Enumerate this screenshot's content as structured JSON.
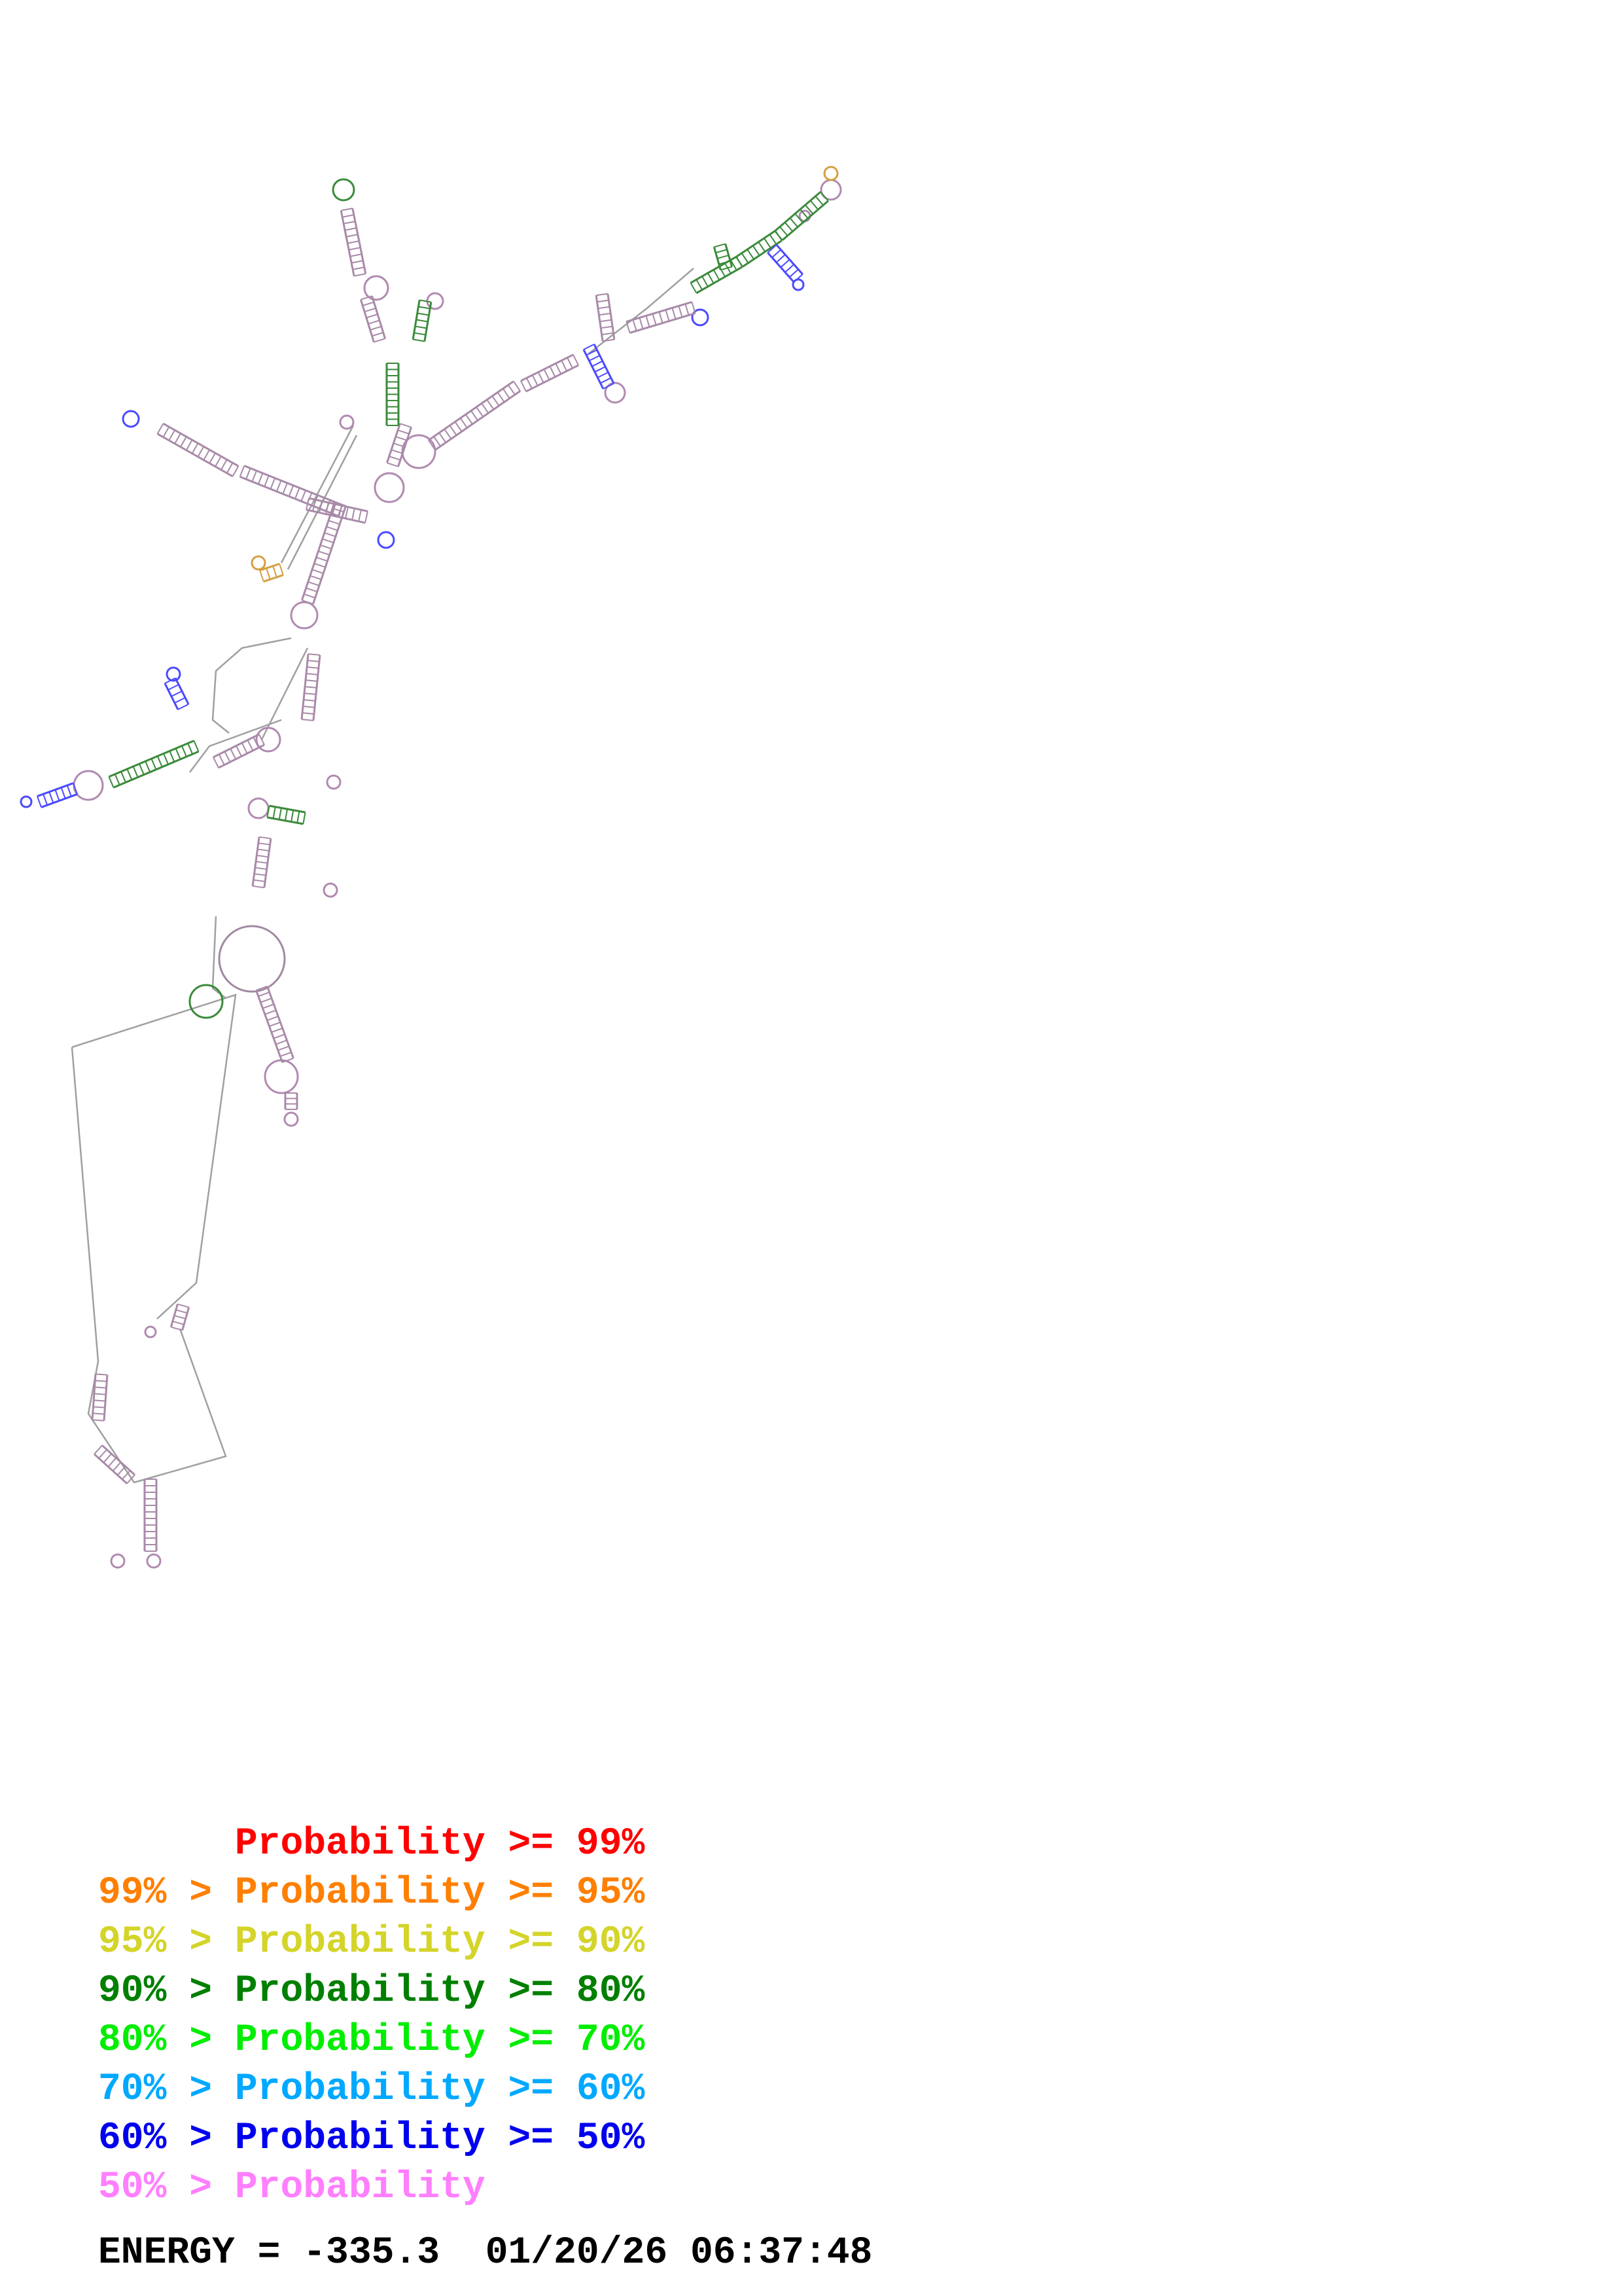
{
  "legend": [
    {
      "text": "      Probability >= 99%",
      "color": "#ff0000"
    },
    {
      "text": "99% > Probability >= 95%",
      "color": "#ff7f00"
    },
    {
      "text": "95% > Probability >= 90%",
      "color": "#d4d42a"
    },
    {
      "text": "90% > Probability >= 80%",
      "color": "#007f00"
    },
    {
      "text": "80% > Probability >= 70%",
      "color": "#00ee00"
    },
    {
      "text": "70% > Probability >= 60%",
      "color": "#00a8ff"
    },
    {
      "text": "60% > Probability >= 50%",
      "color": "#0000ee"
    },
    {
      "text": "50% > Probability",
      "color": "#ff7fff"
    }
  ],
  "energy_line": "ENERGY = -335.3  01/20/26 06:37:48",
  "colors": {
    "backbone": "#999999",
    "base_pair_default": "#b58ab5",
    "high_prob": "#3a8a3a",
    "mid_prob": "#4a4aff"
  }
}
